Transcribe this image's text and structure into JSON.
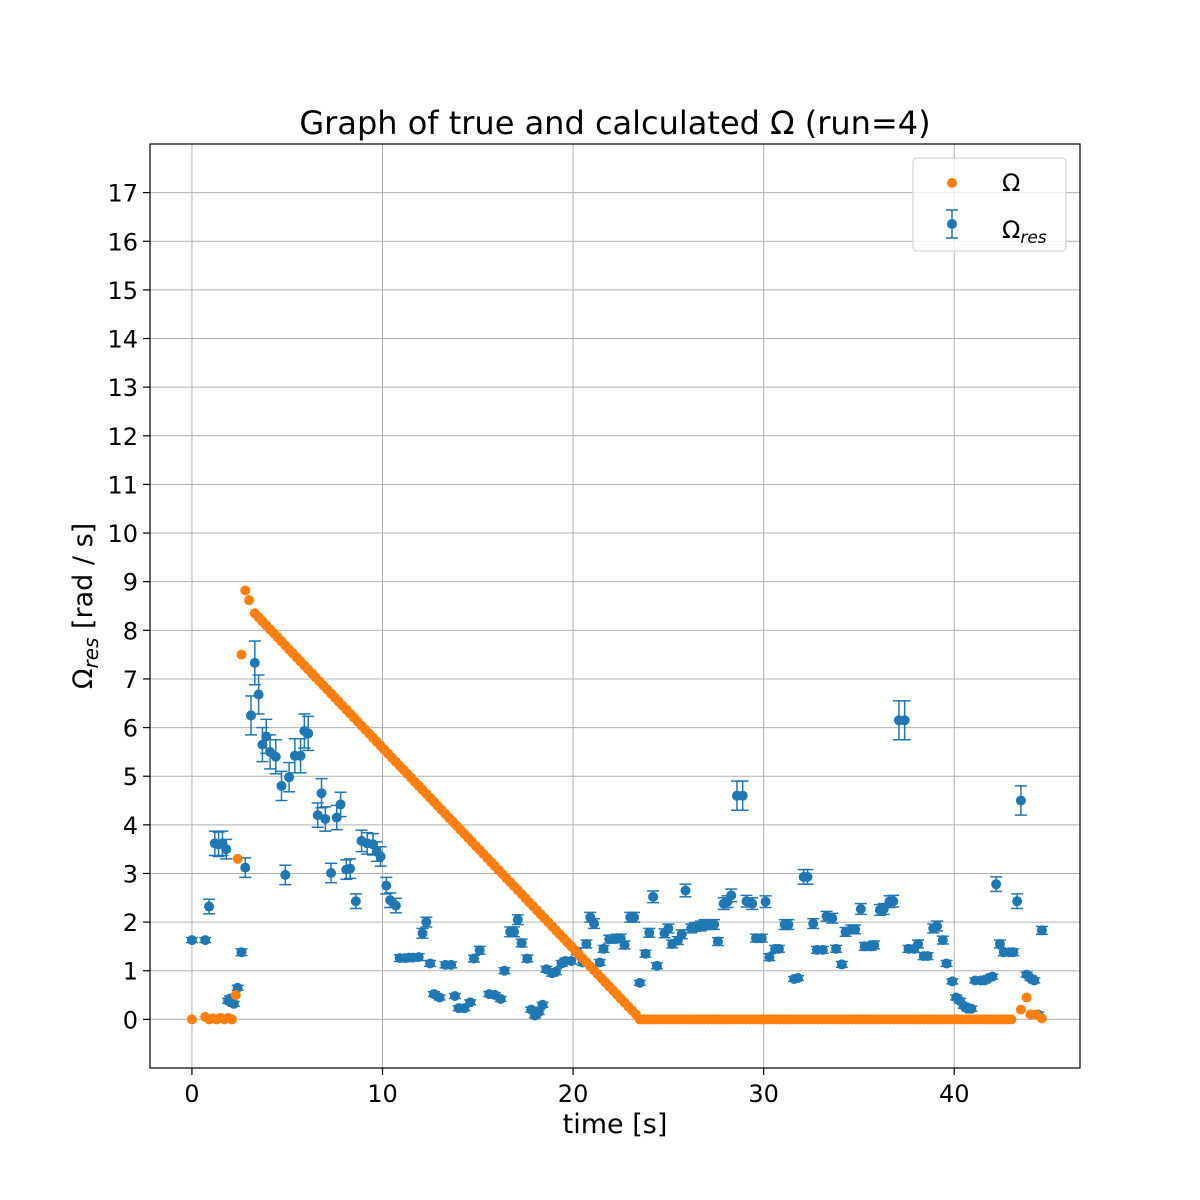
{
  "chart_data": {
    "type": "scatter",
    "title": "Graph of true and calculated Ω (run=4)",
    "xlabel": "time [s]",
    "ylabel": "Ωres [rad / s]",
    "ylabel_main": "Ω",
    "ylabel_sub": "res",
    "ylabel_tail": " [rad / s]",
    "xlim": [
      -2.2,
      46.6
    ],
    "ylim": [
      -1.0,
      18.0
    ],
    "xticks": [
      0,
      10,
      20,
      30,
      40
    ],
    "yticks": [
      0,
      1,
      2,
      3,
      4,
      5,
      6,
      7,
      8,
      9,
      10,
      11,
      12,
      13,
      14,
      15,
      16,
      17
    ],
    "grid": true,
    "legend_position": "top-right",
    "legend": [
      {
        "label_main": "Ω",
        "label_sub": "",
        "marker": "point"
      },
      {
        "label_main": "Ω",
        "label_sub": "res",
        "marker": "errorbar"
      }
    ],
    "series": [
      {
        "name": "Ω",
        "color": "#ff7f0e",
        "kind": "points",
        "segments": [
          {
            "points": [
              [
                0.0,
                0.0
              ]
            ]
          },
          {
            "points": [
              [
                0.7,
                0.05
              ],
              [
                0.9,
                0.0
              ],
              [
                1.1,
                0.02
              ],
              [
                1.3,
                0.0
              ],
              [
                1.5,
                0.03
              ],
              [
                1.7,
                0.0
              ],
              [
                1.9,
                0.03
              ],
              [
                2.1,
                0.0
              ]
            ]
          },
          {
            "points": [
              [
                2.3,
                0.5
              ],
              [
                2.4,
                3.3
              ],
              [
                2.6,
                7.5
              ],
              [
                2.8,
                8.82
              ],
              [
                3.0,
                8.62
              ]
            ]
          },
          {
            "from": 3.3,
            "to": 23.3,
            "v0": 8.35,
            "v1": 0.1,
            "n": 101
          },
          {
            "from": 23.5,
            "to": 43.0,
            "v0": 0.0,
            "v1": 0.0,
            "n": 99
          },
          {
            "points": [
              [
                43.5,
                0.2
              ],
              [
                43.8,
                0.45
              ],
              [
                44.0,
                0.1
              ],
              [
                44.3,
                0.1
              ],
              [
                44.6,
                0.02
              ]
            ]
          }
        ]
      },
      {
        "name": "Ωres",
        "color": "#1f77b4",
        "kind": "errorbar",
        "points": [
          [
            0.0,
            1.63,
            0.05
          ],
          [
            0.7,
            1.63,
            0.05
          ],
          [
            0.9,
            2.32,
            0.15
          ],
          [
            1.2,
            3.62,
            0.25
          ],
          [
            1.4,
            3.6,
            0.25
          ],
          [
            1.6,
            3.62,
            0.25
          ],
          [
            1.8,
            3.5,
            0.2
          ],
          [
            1.9,
            0.38,
            0.05
          ],
          [
            2.0,
            0.43,
            0.05
          ],
          [
            2.2,
            0.32,
            0.05
          ],
          [
            2.4,
            0.65,
            0.05
          ],
          [
            2.6,
            1.38,
            0.07
          ],
          [
            2.8,
            3.12,
            0.2
          ],
          [
            3.1,
            6.25,
            0.4
          ],
          [
            3.3,
            7.33,
            0.45
          ],
          [
            3.5,
            6.68,
            0.4
          ],
          [
            3.7,
            5.65,
            0.35
          ],
          [
            3.9,
            5.82,
            0.35
          ],
          [
            4.1,
            5.5,
            0.35
          ],
          [
            4.4,
            5.4,
            0.35
          ],
          [
            4.7,
            4.8,
            0.3
          ],
          [
            4.9,
            2.97,
            0.2
          ],
          [
            5.1,
            4.98,
            0.3
          ],
          [
            5.4,
            5.42,
            0.35
          ],
          [
            5.7,
            5.42,
            0.35
          ],
          [
            5.9,
            5.93,
            0.35
          ],
          [
            6.1,
            5.88,
            0.35
          ],
          [
            6.6,
            4.2,
            0.25
          ],
          [
            6.8,
            4.65,
            0.3
          ],
          [
            7.0,
            4.12,
            0.25
          ],
          [
            7.3,
            3.01,
            0.2
          ],
          [
            7.6,
            4.15,
            0.25
          ],
          [
            7.8,
            4.42,
            0.25
          ],
          [
            8.1,
            3.08,
            0.2
          ],
          [
            8.3,
            3.1,
            0.2
          ],
          [
            8.6,
            2.43,
            0.15
          ],
          [
            8.9,
            3.67,
            0.22
          ],
          [
            9.2,
            3.62,
            0.22
          ],
          [
            9.5,
            3.6,
            0.22
          ],
          [
            9.7,
            3.45,
            0.2
          ],
          [
            9.9,
            3.35,
            0.2
          ],
          [
            10.2,
            2.75,
            0.17
          ],
          [
            10.4,
            2.45,
            0.15
          ],
          [
            10.7,
            2.34,
            0.15
          ],
          [
            10.9,
            1.26,
            0.07
          ],
          [
            11.2,
            1.26,
            0.07
          ],
          [
            11.4,
            1.27,
            0.07
          ],
          [
            11.6,
            1.27,
            0.07
          ],
          [
            11.9,
            1.28,
            0.07
          ],
          [
            12.1,
            1.77,
            0.1
          ],
          [
            12.3,
            2.0,
            0.1
          ],
          [
            12.5,
            1.15,
            0.06
          ],
          [
            12.7,
            0.52,
            0.05
          ],
          [
            13.0,
            0.45,
            0.05
          ],
          [
            13.3,
            1.12,
            0.06
          ],
          [
            13.6,
            1.12,
            0.06
          ],
          [
            13.8,
            0.48,
            0.05
          ],
          [
            14.0,
            0.23,
            0.05
          ],
          [
            14.3,
            0.23,
            0.05
          ],
          [
            14.6,
            0.35,
            0.05
          ],
          [
            14.8,
            1.25,
            0.07
          ],
          [
            15.1,
            1.42,
            0.08
          ],
          [
            15.6,
            0.52,
            0.05
          ],
          [
            15.9,
            0.5,
            0.05
          ],
          [
            16.2,
            0.42,
            0.05
          ],
          [
            16.4,
            1.0,
            0.06
          ],
          [
            16.7,
            1.8,
            0.1
          ],
          [
            16.9,
            1.8,
            0.1
          ],
          [
            17.1,
            2.05,
            0.1
          ],
          [
            17.3,
            1.57,
            0.08
          ],
          [
            17.6,
            1.25,
            0.07
          ],
          [
            17.8,
            0.2,
            0.05
          ],
          [
            18.0,
            0.08,
            0.05
          ],
          [
            18.2,
            0.15,
            0.05
          ],
          [
            18.4,
            0.3,
            0.05
          ],
          [
            18.6,
            1.03,
            0.06
          ],
          [
            18.9,
            0.95,
            0.06
          ],
          [
            19.1,
            0.98,
            0.06
          ],
          [
            19.4,
            1.15,
            0.06
          ],
          [
            19.6,
            1.2,
            0.06
          ],
          [
            19.9,
            1.2,
            0.06
          ],
          [
            20.2,
            1.4,
            0.07
          ],
          [
            20.5,
            1.17,
            0.06
          ],
          [
            20.7,
            1.55,
            0.08
          ],
          [
            20.9,
            2.1,
            0.1
          ],
          [
            21.1,
            1.97,
            0.1
          ],
          [
            21.4,
            1.17,
            0.06
          ],
          [
            21.6,
            1.45,
            0.07
          ],
          [
            21.9,
            1.65,
            0.08
          ],
          [
            22.1,
            1.65,
            0.08
          ],
          [
            22.3,
            1.67,
            0.08
          ],
          [
            22.5,
            1.67,
            0.08
          ],
          [
            22.7,
            1.53,
            0.08
          ],
          [
            23.0,
            2.1,
            0.1
          ],
          [
            23.2,
            2.1,
            0.1
          ],
          [
            23.5,
            0.75,
            0.05
          ],
          [
            23.8,
            1.35,
            0.07
          ],
          [
            24.0,
            1.78,
            0.09
          ],
          [
            24.2,
            2.52,
            0.12
          ],
          [
            24.4,
            1.1,
            0.06
          ],
          [
            24.8,
            1.77,
            0.09
          ],
          [
            25.0,
            1.87,
            0.09
          ],
          [
            25.2,
            1.55,
            0.08
          ],
          [
            25.5,
            1.62,
            0.08
          ],
          [
            25.7,
            1.75,
            0.09
          ],
          [
            25.9,
            2.65,
            0.13
          ],
          [
            26.2,
            1.87,
            0.09
          ],
          [
            26.4,
            1.9,
            0.09
          ],
          [
            26.7,
            1.92,
            0.1
          ],
          [
            26.9,
            1.95,
            0.1
          ],
          [
            27.2,
            1.95,
            0.1
          ],
          [
            27.4,
            1.95,
            0.1
          ],
          [
            27.6,
            1.6,
            0.08
          ],
          [
            27.9,
            2.38,
            0.12
          ],
          [
            28.1,
            2.42,
            0.12
          ],
          [
            28.3,
            2.55,
            0.13
          ],
          [
            28.6,
            4.6,
            0.3
          ],
          [
            28.9,
            4.6,
            0.3
          ],
          [
            29.1,
            2.43,
            0.12
          ],
          [
            29.4,
            2.38,
            0.12
          ],
          [
            29.6,
            1.67,
            0.08
          ],
          [
            29.9,
            1.67,
            0.08
          ],
          [
            30.1,
            2.42,
            0.12
          ],
          [
            30.3,
            1.28,
            0.07
          ],
          [
            30.6,
            1.45,
            0.07
          ],
          [
            30.8,
            1.45,
            0.07
          ],
          [
            31.1,
            1.95,
            0.1
          ],
          [
            31.3,
            1.95,
            0.1
          ],
          [
            31.6,
            0.83,
            0.05
          ],
          [
            31.8,
            0.85,
            0.05
          ],
          [
            32.1,
            2.93,
            0.15
          ],
          [
            32.3,
            2.93,
            0.15
          ],
          [
            32.6,
            1.97,
            0.1
          ],
          [
            32.8,
            1.43,
            0.07
          ],
          [
            33.1,
            1.43,
            0.07
          ],
          [
            33.3,
            2.12,
            0.1
          ],
          [
            33.6,
            2.08,
            0.1
          ],
          [
            33.8,
            1.45,
            0.07
          ],
          [
            34.1,
            1.13,
            0.06
          ],
          [
            34.3,
            1.8,
            0.09
          ],
          [
            34.6,
            1.85,
            0.09
          ],
          [
            34.8,
            1.85,
            0.09
          ],
          [
            35.1,
            2.27,
            0.11
          ],
          [
            35.3,
            1.5,
            0.08
          ],
          [
            35.6,
            1.5,
            0.08
          ],
          [
            35.8,
            1.53,
            0.08
          ],
          [
            36.1,
            2.25,
            0.11
          ],
          [
            36.3,
            2.27,
            0.11
          ],
          [
            36.6,
            2.42,
            0.12
          ],
          [
            36.8,
            2.43,
            0.12
          ],
          [
            37.1,
            6.15,
            0.4
          ],
          [
            37.4,
            6.15,
            0.4
          ],
          [
            37.6,
            1.45,
            0.07
          ],
          [
            37.9,
            1.45,
            0.07
          ],
          [
            38.1,
            1.55,
            0.08
          ],
          [
            38.4,
            1.3,
            0.07
          ],
          [
            38.6,
            1.3,
            0.07
          ],
          [
            38.9,
            1.87,
            0.09
          ],
          [
            39.1,
            1.92,
            0.1
          ],
          [
            39.4,
            1.63,
            0.08
          ],
          [
            39.6,
            1.15,
            0.06
          ],
          [
            39.9,
            0.78,
            0.05
          ],
          [
            40.1,
            0.45,
            0.05
          ],
          [
            40.3,
            0.38,
            0.05
          ],
          [
            40.5,
            0.28,
            0.05
          ],
          [
            40.7,
            0.22,
            0.05
          ],
          [
            40.9,
            0.22,
            0.05
          ],
          [
            41.1,
            0.8,
            0.05
          ],
          [
            41.4,
            0.8,
            0.05
          ],
          [
            41.6,
            0.8,
            0.05
          ],
          [
            41.8,
            0.85,
            0.05
          ],
          [
            42.0,
            0.88,
            0.05
          ],
          [
            42.2,
            2.78,
            0.15
          ],
          [
            42.4,
            1.55,
            0.08
          ],
          [
            42.6,
            1.38,
            0.07
          ],
          [
            42.9,
            1.38,
            0.07
          ],
          [
            43.1,
            1.38,
            0.07
          ],
          [
            43.3,
            2.43,
            0.15
          ],
          [
            43.5,
            4.5,
            0.3
          ],
          [
            43.8,
            0.92,
            0.05
          ],
          [
            44.0,
            0.85,
            0.05
          ],
          [
            44.2,
            0.8,
            0.05
          ],
          [
            44.4,
            0.1,
            0.05
          ],
          [
            44.6,
            1.83,
            0.08
          ]
        ]
      }
    ]
  }
}
